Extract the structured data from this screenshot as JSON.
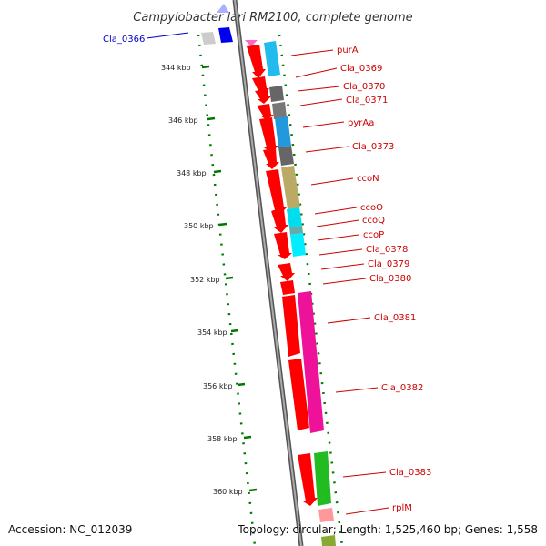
{
  "title": "Campylobacter lari RM2100, complete genome",
  "accession": "Accession: NC_012039",
  "topology": "Topology: circular; Length: 1,525,460 bp; Genes: 1,558",
  "scale_unit": "kbp",
  "scale_labels": [
    "344 kbp",
    "346 kbp",
    "348 kbp",
    "350 kbp",
    "352 kbp",
    "354 kbp",
    "356 kbp",
    "358 kbp",
    "360 kbp"
  ],
  "colors": {
    "gene": "#ff0000",
    "gene_upstream": "#0000ee",
    "backbone": "#888888",
    "tick": "#007700",
    "label": "#cc0000",
    "label_upstream": "#0000cc"
  },
  "genes": [
    {
      "name": "Cla_0366",
      "color": "#0000ee"
    },
    {
      "name": "purA",
      "color": "#ff0000"
    },
    {
      "name": "Cla_0369",
      "color": "#ff0000"
    },
    {
      "name": "Cla_0370",
      "color": "#ff0000"
    },
    {
      "name": "Cla_0371",
      "color": "#ff0000"
    },
    {
      "name": "pyrAa",
      "color": "#ff0000"
    },
    {
      "name": "Cla_0373",
      "color": "#ff0000"
    },
    {
      "name": "ccoN",
      "color": "#ff0000"
    },
    {
      "name": "ccoO",
      "color": "#ff0000"
    },
    {
      "name": "ccoQ",
      "color": "#ff0000"
    },
    {
      "name": "ccoP",
      "color": "#ff0000"
    },
    {
      "name": "Cla_0378",
      "color": "#ff0000"
    },
    {
      "name": "Cla_0379",
      "color": "#ff0000"
    },
    {
      "name": "Cla_0380",
      "color": "#ff0000"
    },
    {
      "name": "Cla_0381",
      "color": "#ff0000"
    },
    {
      "name": "Cla_0382",
      "color": "#ff0000"
    },
    {
      "name": "Cla_0383",
      "color": "#ff0000"
    },
    {
      "name": "rplM",
      "color": "#ff0000"
    }
  ]
}
